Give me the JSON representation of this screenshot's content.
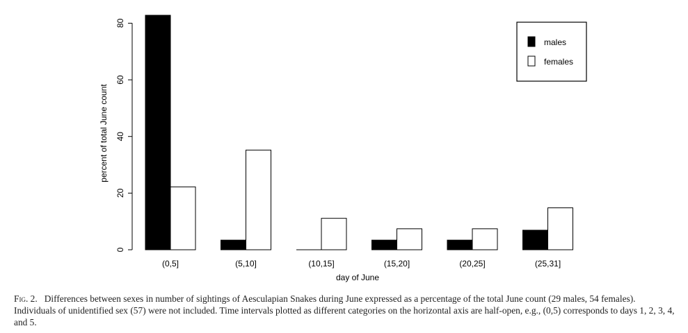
{
  "chart_data": {
    "type": "bar",
    "categories": [
      "(0,5]",
      "(5,10]",
      "(10,15]",
      "(15,20]",
      "(20,25]",
      "(25,31]"
    ],
    "series": [
      {
        "name": "males",
        "values": [
          82.8,
          3.4,
          0.0,
          3.4,
          3.4,
          6.9
        ],
        "color": "#000000"
      },
      {
        "name": "females",
        "values": [
          22.2,
          35.2,
          11.1,
          7.4,
          7.4,
          14.8
        ],
        "color": "#ffffff"
      }
    ],
    "title": "",
    "xlabel": "day of June",
    "ylabel": "percent of total June count",
    "ylim": [
      0,
      82.8
    ],
    "yticks": [
      0,
      20,
      40,
      60,
      80
    ],
    "grid": false,
    "legend_position": "top-right"
  },
  "caption": {
    "label": "Fig. 2.",
    "text": "Differences between sexes in number of sightings of Aesculapian Snakes during June expressed as a percentage of the total June count (29 males, 54 females). Individuals of unidentified sex (57) were not included. Time intervals plotted as different categories on the horizontal axis are half-open, e.g., (0,5) corresponds to days 1, 2, 3, 4, and 5."
  }
}
